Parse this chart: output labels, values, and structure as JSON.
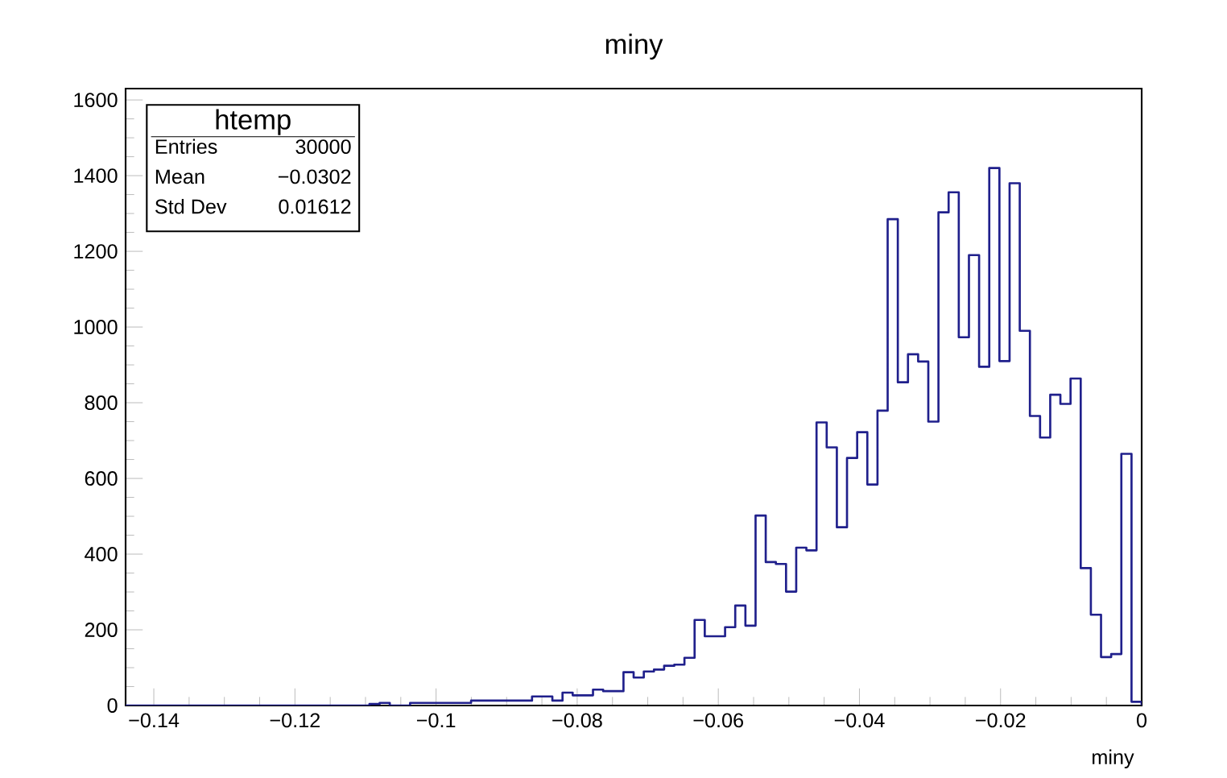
{
  "chart_data": {
    "type": "histogram",
    "title": "miny",
    "xlabel": "miny",
    "color": "#20208c",
    "bins": [
      -0.144,
      -0.14256,
      -0.14112,
      -0.13968,
      -0.13824,
      -0.1368,
      -0.13536,
      -0.13392,
      -0.13248,
      -0.13104,
      -0.1296,
      -0.12816,
      -0.12672,
      -0.12528,
      -0.12384,
      -0.1224,
      -0.12096,
      -0.11952,
      -0.11808,
      -0.11664,
      -0.1152,
      -0.11376,
      -0.11232,
      -0.11088,
      -0.10944,
      -0.108,
      -0.10656,
      -0.10512,
      -0.10368,
      -0.10224,
      -0.1008,
      -0.09936,
      -0.09792,
      -0.09648,
      -0.09504,
      -0.0936,
      -0.09216,
      -0.09072,
      -0.08928,
      -0.08784,
      -0.0864,
      -0.08496,
      -0.08352,
      -0.08208,
      -0.08064,
      -0.0792,
      -0.07776,
      -0.07632,
      -0.07488,
      -0.07344,
      -0.072,
      -0.07056,
      -0.06912,
      -0.06768,
      -0.06624,
      -0.0648,
      -0.06336,
      -0.06192,
      -0.06048,
      -0.05904,
      -0.0576,
      -0.05616,
      -0.05472,
      -0.05328,
      -0.05184,
      -0.0504,
      -0.04896,
      -0.04752,
      -0.04608,
      -0.04464,
      -0.0432,
      -0.04176,
      -0.04032,
      -0.03888,
      -0.03744,
      -0.036,
      -0.03456,
      -0.03312,
      -0.03168,
      -0.03024,
      -0.0288,
      -0.02736,
      -0.02592,
      -0.02448,
      -0.02304,
      -0.0216,
      -0.02016,
      -0.01872,
      -0.01728,
      -0.01584,
      -0.0144,
      -0.01296,
      -0.01152,
      -0.01008,
      -0.00864,
      -0.0072,
      -0.00576,
      -0.00432,
      -0.00288,
      -0.00144,
      0
    ],
    "values": [
      0,
      0,
      0,
      0,
      0,
      0,
      0,
      0,
      0,
      0,
      0,
      0,
      0,
      0,
      0,
      0,
      0,
      0,
      0,
      0,
      0,
      0,
      0,
      0,
      4,
      7,
      0,
      0,
      7,
      7,
      7,
      7,
      7,
      7,
      13,
      13,
      13,
      13,
      13,
      13,
      24,
      24,
      13,
      34,
      27,
      27,
      42,
      38,
      38,
      88,
      74,
      90,
      95,
      105,
      108,
      126,
      226,
      183,
      183,
      207,
      264,
      211,
      502,
      379,
      374,
      301,
      417,
      410,
      748,
      682,
      471,
      654,
      722,
      584,
      779,
      1285,
      854,
      928,
      909,
      750,
      1303,
      1356,
      973,
      1190,
      895,
      1420,
      910,
      1380,
      990,
      765,
      708,
      821,
      797,
      864,
      363,
      240,
      128,
      136,
      665,
      10
    ],
    "xlim": [
      -0.144,
      0
    ],
    "ylim": [
      0,
      1630
    ],
    "xticks": [
      {
        "value": -0.14,
        "label": "−0.14"
      },
      {
        "value": -0.12,
        "label": "−0.12"
      },
      {
        "value": -0.1,
        "label": "−0.1"
      },
      {
        "value": -0.08,
        "label": "−0.08"
      },
      {
        "value": -0.06,
        "label": "−0.06"
      },
      {
        "value": -0.04,
        "label": "−0.04"
      },
      {
        "value": -0.02,
        "label": "−0.02"
      },
      0
    ],
    "yticks": [
      0,
      200,
      400,
      600,
      800,
      1000,
      1200,
      1400,
      1600
    ],
    "annotations": [
      "htemp",
      "Entries",
      "30000",
      "Mean",
      "−0.0302",
      "Std Dev",
      "0.01612"
    ]
  }
}
